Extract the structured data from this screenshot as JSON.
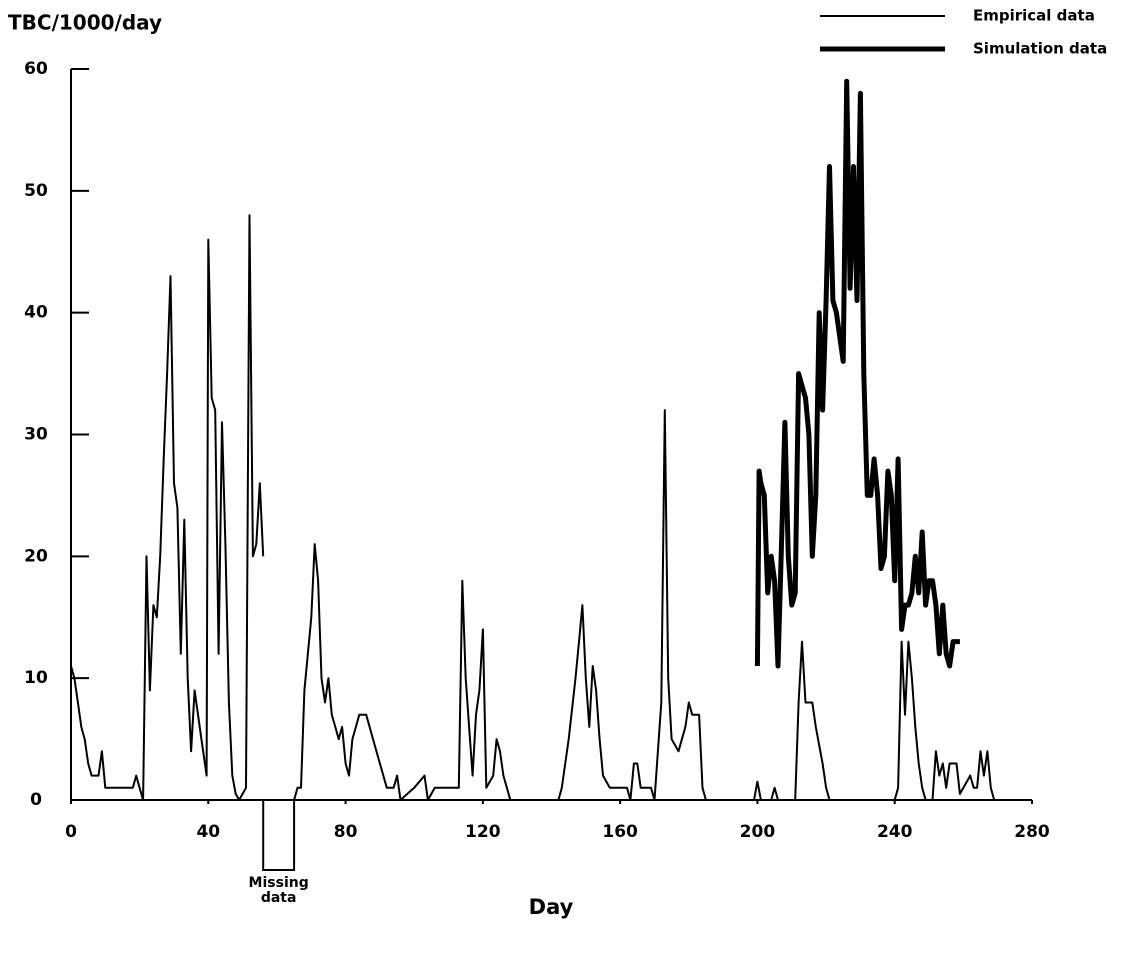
{
  "chart_data": {
    "type": "line",
    "ylabel": "TBC/1000/day",
    "xlabel": "Day",
    "xlim": [
      0,
      280
    ],
    "xticks": [
      0,
      40,
      80,
      120,
      160,
      200,
      240,
      280
    ],
    "ylim": [
      0,
      60
    ],
    "yticks": [
      0,
      10,
      20,
      30,
      40,
      50,
      60
    ],
    "grid": false,
    "legend": "upper right",
    "annotation": {
      "text": "Missing data",
      "x_range": [
        56,
        65
      ]
    },
    "series": [
      {
        "name": "Empirical data",
        "color": "#000000",
        "linewidth": 2,
        "x": [
          0,
          1,
          2,
          3,
          4,
          5,
          6,
          7,
          8,
          9,
          10,
          12,
          15,
          18,
          19,
          20,
          21,
          22,
          23,
          24,
          25,
          26,
          27,
          28,
          29,
          30,
          31,
          32,
          33,
          34,
          35,
          36,
          37,
          38,
          39,
          39.5,
          40,
          41,
          42,
          43,
          44,
          45,
          46,
          47,
          48,
          49,
          50,
          51,
          52,
          53,
          54,
          55,
          56,
          57,
          65,
          66,
          67,
          68,
          70,
          71,
          72,
          73,
          74,
          75,
          76,
          77,
          78,
          79,
          80,
          81,
          82,
          83,
          84,
          86,
          88,
          90,
          92,
          94,
          95,
          96,
          98,
          100,
          103,
          104,
          106,
          110,
          113,
          114,
          115,
          116,
          117,
          118,
          119,
          120,
          121,
          123,
          124,
          125,
          126,
          127,
          128,
          142,
          143,
          145,
          147,
          148,
          149,
          150,
          151,
          152,
          153,
          154,
          155,
          157,
          160,
          162,
          163,
          164,
          165,
          166,
          169,
          170,
          172,
          173,
          174,
          175,
          176,
          177,
          178,
          179,
          180,
          181,
          183,
          184,
          185,
          199,
          200,
          201,
          204,
          205,
          206,
          211,
          212,
          213,
          214,
          216,
          217,
          219,
          220,
          221,
          240,
          241,
          242,
          243,
          244,
          245,
          246,
          247,
          248,
          249,
          251,
          252,
          253,
          254,
          255,
          256,
          258,
          259,
          260,
          262,
          263,
          264,
          265,
          266,
          267,
          268,
          269,
          280
        ],
        "values": [
          11,
          10,
          8,
          6,
          5,
          3,
          2,
          2,
          2,
          4,
          1,
          1,
          1,
          1,
          2,
          1,
          0,
          20,
          9,
          16,
          15,
          20,
          28,
          35,
          43,
          26,
          24,
          12,
          23,
          10,
          4,
          9,
          7,
          5,
          3,
          2,
          46,
          33,
          32,
          12,
          31,
          21,
          8,
          2,
          0.5,
          0,
          0.5,
          1,
          48,
          20,
          21,
          26,
          20,
          null,
          0,
          1,
          1,
          9,
          15,
          21,
          18,
          10,
          8,
          10,
          7,
          6,
          5,
          6,
          3,
          2,
          5,
          6,
          7,
          7,
          5,
          3,
          1,
          1,
          2,
          0,
          0.5,
          1,
          2,
          0,
          1,
          1,
          1,
          18,
          10,
          6,
          2,
          7,
          9,
          14,
          1,
          2,
          5,
          4,
          2,
          1,
          0,
          0,
          1,
          5,
          10,
          13,
          16,
          10,
          6,
          11,
          9,
          5,
          2,
          1,
          1,
          1,
          0,
          3,
          3,
          1,
          1,
          0,
          8,
          32,
          10,
          5,
          4.5,
          4,
          5,
          6,
          8,
          7,
          7,
          1,
          0,
          0,
          1.5,
          0,
          0,
          1,
          0,
          0,
          8,
          13,
          8,
          8,
          6,
          3,
          1,
          0,
          0,
          1,
          13,
          7,
          13,
          10,
          6,
          3,
          1,
          0,
          0,
          4,
          2,
          3,
          1,
          3,
          3,
          0.5,
          1,
          2,
          1,
          1,
          4,
          2,
          4,
          1,
          0,
          0
        ]
      },
      {
        "name": "Simulation data",
        "color": "#000000",
        "linewidth": 5,
        "x": [
          200,
          200.5,
          201,
          202,
          203,
          204,
          205,
          206,
          207,
          208,
          209,
          210,
          211,
          212,
          213,
          214,
          215,
          216,
          217,
          218,
          219,
          220,
          221,
          222,
          223,
          224,
          225,
          226,
          227,
          228,
          229,
          230,
          231,
          232,
          233,
          234,
          235,
          236,
          237,
          238,
          239,
          240,
          241,
          242,
          243,
          244,
          245,
          246,
          247,
          248,
          249,
          250,
          251,
          252,
          253,
          254,
          255,
          256,
          257,
          258,
          259
        ],
        "values": [
          11,
          27,
          26,
          25,
          17,
          20,
          18,
          11,
          21,
          31,
          20,
          16,
          17,
          35,
          34,
          33,
          30,
          20,
          25,
          40,
          32,
          41,
          52,
          41,
          40,
          38,
          36,
          59,
          42,
          52,
          41,
          58,
          35,
          25,
          25,
          28,
          25,
          19,
          20,
          27,
          25,
          18,
          28,
          14,
          16,
          16,
          17,
          20,
          17,
          22,
          16,
          18,
          18,
          16,
          12,
          16,
          12,
          11,
          13,
          13,
          13
        ]
      }
    ]
  }
}
